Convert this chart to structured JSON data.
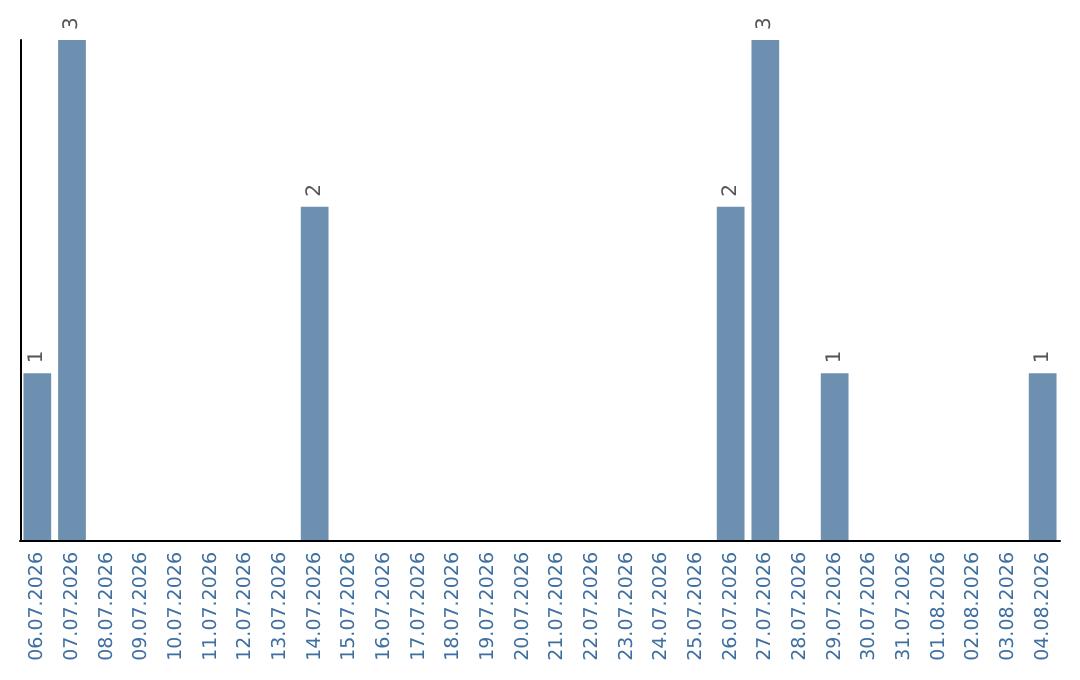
{
  "chart_data": {
    "type": "bar",
    "categories": [
      "06.07.2026",
      "07.07.2026",
      "08.07.2026",
      "09.07.2026",
      "10.07.2026",
      "11.07.2026",
      "12.07.2026",
      "13.07.2026",
      "14.07.2026",
      "15.07.2026",
      "16.07.2026",
      "17.07.2026",
      "18.07.2026",
      "19.07.2026",
      "20.07.2026",
      "21.07.2026",
      "22.07.2026",
      "23.07.2026",
      "24.07.2026",
      "25.07.2026",
      "26.07.2026",
      "27.07.2026",
      "28.07.2026",
      "29.07.2026",
      "30.07.2026",
      "31.07.2026",
      "01.08.2026",
      "02.08.2026",
      "03.08.2026",
      "04.08.2026"
    ],
    "values": [
      1,
      3,
      0,
      0,
      0,
      0,
      0,
      0,
      2,
      0,
      0,
      0,
      0,
      0,
      0,
      0,
      0,
      0,
      0,
      0,
      2,
      3,
      0,
      1,
      0,
      0,
      0,
      0,
      0,
      1
    ],
    "value_labels": [
      "1",
      "3",
      null,
      null,
      null,
      null,
      null,
      null,
      "2",
      null,
      null,
      null,
      null,
      null,
      null,
      null,
      null,
      null,
      null,
      null,
      "2",
      "3",
      null,
      "1",
      null,
      null,
      null,
      null,
      null,
      "1"
    ],
    "color": "#6d8fb0",
    "ylim": [
      0,
      3
    ],
    "tick_labels": "x",
    "grid": false
  }
}
